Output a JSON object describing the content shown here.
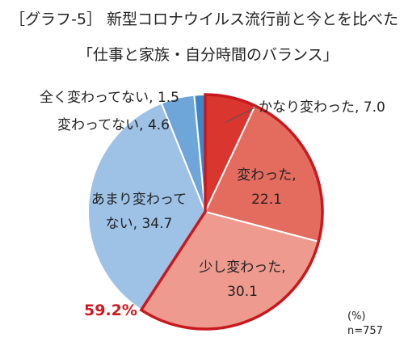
{
  "title": {
    "line1": "［グラフ-5］ 新型コロナウイルス流行前と今とを比べた",
    "line2": "「仕事と家族・自分時間のバランス」"
  },
  "unit_label": "(%)",
  "sample_label": "n=757",
  "highlight_total": "59.2%",
  "colors": {
    "slice_changed_a_lot": "#d9362f",
    "slice_changed": "#e46c5f",
    "slice_changed_a_little": "#ee9a8e",
    "slice_not_much": "#9ec2e6",
    "slice_not_changed": "#6fa6d9",
    "slice_not_at_all": "#3f86c6",
    "highlight_border": "#c8181e",
    "highlight_text": "#d01a1f"
  },
  "chart_data": {
    "type": "pie",
    "unit": "%",
    "n": 757,
    "start": "12 o'clock, clockwise",
    "slices": [
      {
        "label": "かなり変わった",
        "value": 7.0,
        "display": "かなり変わった, 7.0"
      },
      {
        "label": "変わった",
        "value": 22.1,
        "display_lines": [
          "変わった,",
          "22.1"
        ]
      },
      {
        "label": "少し変わった",
        "value": 30.1,
        "display_lines": [
          "少し変わった,",
          "30.1"
        ]
      },
      {
        "label": "あまり変わってない",
        "value": 34.7,
        "display_lines": [
          "あまり変わって",
          "ない, 34.7"
        ]
      },
      {
        "label": "変わってない",
        "value": 4.6,
        "display": "変わってない, 4.6"
      },
      {
        "label": "全く変わってない",
        "value": 1.5,
        "display": "全く変わってない, 1.5"
      }
    ],
    "highlight": {
      "slices": [
        "かなり変わった",
        "変わった",
        "少し変わった"
      ],
      "total": 59.2
    }
  }
}
